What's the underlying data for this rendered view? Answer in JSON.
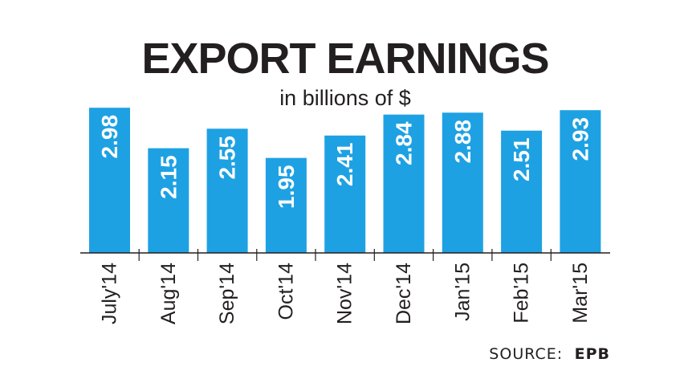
{
  "chart_data": {
    "type": "bar",
    "title": "EXPORT EARNINGS",
    "subtitle": "in billions of $",
    "categories": [
      "July'14",
      "Aug'14",
      "Sep'14",
      "Oct'14",
      "Nov'14",
      "Dec'14",
      "Jan'15",
      "Feb'15",
      "Mar'15"
    ],
    "values": [
      2.98,
      2.15,
      2.55,
      1.95,
      2.41,
      2.84,
      2.88,
      2.51,
      2.93
    ],
    "value_labels": [
      "2.98",
      "2.15",
      "2.55",
      "1.95",
      "2.41",
      "2.84",
      "2.88",
      "2.51",
      "2.93"
    ],
    "ylim": [
      0,
      3.0
    ],
    "grid": false,
    "data_labels": "inside-bar-vertical",
    "bar_color": "#1ea1e3",
    "text_color": "#231f20"
  },
  "source": {
    "prefix": "SOURCE:",
    "name": "EPB"
  }
}
